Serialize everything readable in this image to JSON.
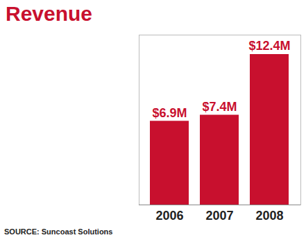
{
  "chart_data": {
    "type": "bar",
    "title": "Revenue",
    "categories": [
      "2006",
      "2007",
      "2008"
    ],
    "values": [
      6.9,
      7.4,
      12.4
    ],
    "value_labels": [
      "$6.9M",
      "$7.4M",
      "$12.4M"
    ],
    "color": "#c8102e",
    "ylim": [
      0,
      14
    ],
    "data_labels": true,
    "tick_labels": "x",
    "source": "SOURCE: Suncoast Solutions"
  }
}
